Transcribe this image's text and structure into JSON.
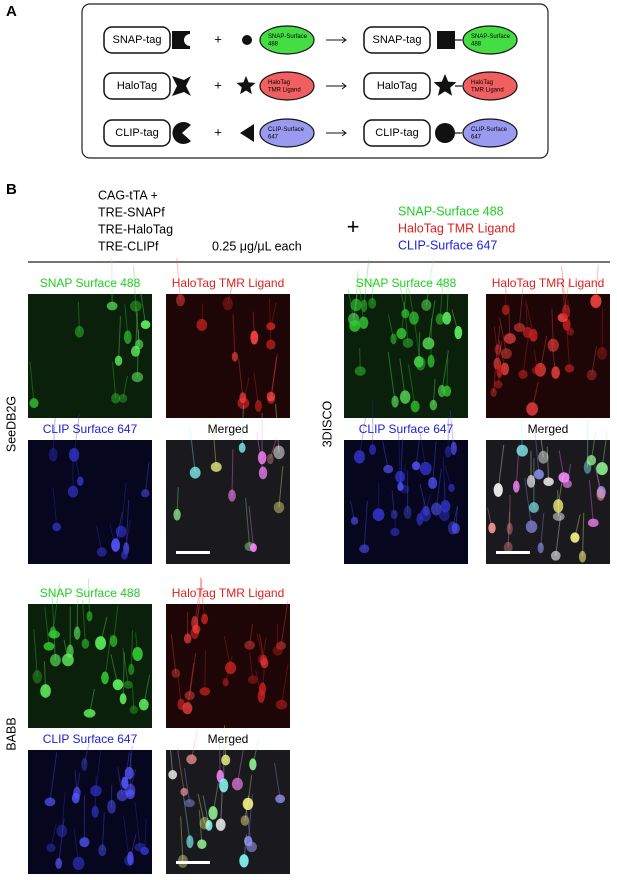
{
  "panel_a": {
    "label": "A",
    "plus_sign": "+",
    "rows": [
      {
        "tag": "SNAP-tag",
        "ligand": [
          "SNAP-Surface",
          "488"
        ],
        "product_tag": "SNAP-tag",
        "product_ligand": [
          "SNAP-Surface",
          "488"
        ]
      },
      {
        "tag": "HaloTag",
        "ligand": [
          "HaloTag",
          "TMR Ligand"
        ],
        "product_tag": "HaloTag",
        "product_ligand": [
          "HaloTag",
          "TMR Ligand"
        ]
      },
      {
        "tag": "CLIP-tag",
        "ligand": [
          "CLIP-Surface",
          "647"
        ],
        "product_tag": "CLIP-tag",
        "product_ligand": [
          "CLIP-Surface",
          "647"
        ]
      }
    ]
  },
  "panel_b": {
    "label": "B",
    "constructs": [
      "CAG-tTA +",
      "TRE-SNAPf",
      "TRE-HaloTag",
      "TRE-CLIPf"
    ],
    "concentration": "0.25 μg/μL each",
    "plus_sign": "+",
    "ligands": [
      "SNAP-Surface 488",
      "HaloTag TMR Ligand",
      "CLIP-Surface 647"
    ],
    "groups": [
      {
        "name": "SeeDB2G",
        "panels": [
          "SNAP Surface 488",
          "HaloTag TMR Ligand",
          "CLIP Surface 647",
          "Merged"
        ]
      },
      {
        "name": "3DISCO",
        "panels": [
          "SNAP Surface 488",
          "HaloTag TMR Ligand",
          "CLIP Surface 647",
          "Merged"
        ]
      },
      {
        "name": "BABB",
        "panels": [
          "SNAP Surface 488",
          "HaloTag TMR Ligand",
          "CLIP Surface 647",
          "Merged"
        ]
      }
    ]
  }
}
